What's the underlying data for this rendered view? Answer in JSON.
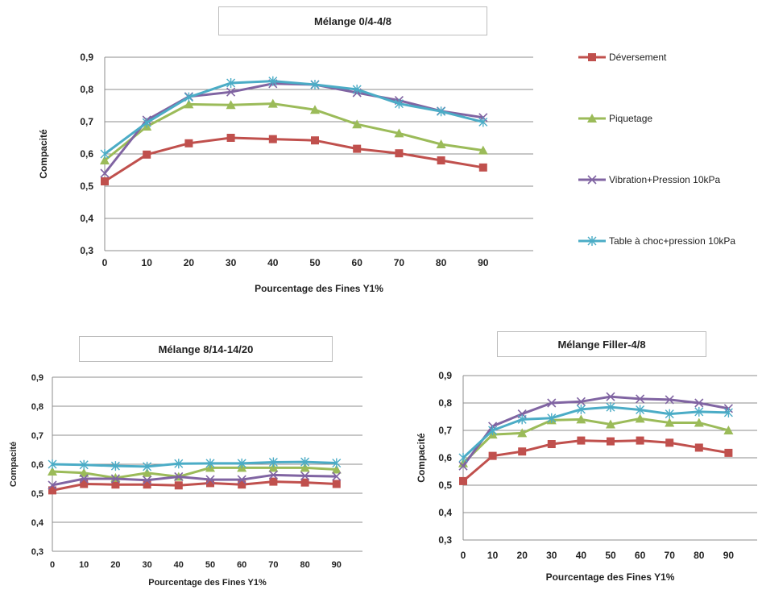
{
  "legend": [
    {
      "name": "Déversement",
      "color": "#c0504d",
      "marker": "square"
    },
    {
      "name": "Piquetage",
      "color": "#9bbb59",
      "marker": "triangle"
    },
    {
      "name": "Vibration+Pression 10kPa",
      "color": "#8064a2",
      "marker": "x"
    },
    {
      "name": "Table à choc+pression 10kPa",
      "color": "#4bacc6",
      "marker": "star"
    }
  ],
  "chart_data": [
    {
      "type": "line",
      "title": "Mélange 0/4-4/8",
      "xlabel": "Pourcentage des Fines Y1%",
      "ylabel": "Compacité",
      "x": [
        0,
        10,
        20,
        30,
        40,
        50,
        60,
        70,
        80,
        90
      ],
      "ylim": [
        0.3,
        0.9
      ],
      "yticks": [
        "0,3",
        "0,4",
        "0,5",
        "0,6",
        "0,7",
        "0,8",
        "0,9"
      ],
      "grid": true,
      "legend_position": "right",
      "series": [
        {
          "name": "Déversement",
          "values": [
            0.515,
            0.598,
            0.633,
            0.65,
            0.646,
            0.642,
            0.616,
            0.602,
            0.58,
            0.558
          ]
        },
        {
          "name": "Piquetage",
          "values": [
            0.58,
            0.685,
            0.754,
            0.752,
            0.756,
            0.737,
            0.692,
            0.664,
            0.63,
            0.611
          ]
        },
        {
          "name": "Vibration+Pression 10kPa",
          "values": [
            0.54,
            0.705,
            0.778,
            0.792,
            0.818,
            0.815,
            0.79,
            0.766,
            0.733,
            0.713
          ]
        },
        {
          "name": "Table à choc+pression 10kPa",
          "values": [
            0.6,
            0.697,
            0.776,
            0.82,
            0.826,
            0.815,
            0.8,
            0.756,
            0.732,
            0.699
          ]
        }
      ]
    },
    {
      "type": "line",
      "title": "Mélange 8/14-14/20",
      "xlabel": "Pourcentage des Fines Y1%",
      "ylabel": "Compacité",
      "x": [
        0,
        10,
        20,
        30,
        40,
        50,
        60,
        70,
        80,
        90
      ],
      "ylim": [
        0.3,
        0.9
      ],
      "yticks": [
        "0,3",
        "0,4",
        "0,5",
        "0,6",
        "0,7",
        "0,8",
        "0,9"
      ],
      "grid": true,
      "legend_position": "none",
      "series": [
        {
          "name": "Déversement",
          "values": [
            0.51,
            0.532,
            0.53,
            0.53,
            0.527,
            0.535,
            0.53,
            0.54,
            0.537,
            0.532
          ]
        },
        {
          "name": "Piquetage",
          "values": [
            0.575,
            0.57,
            0.553,
            0.57,
            0.557,
            0.588,
            0.588,
            0.588,
            0.588,
            0.582
          ]
        },
        {
          "name": "Vibration+Pression 10kPa",
          "values": [
            0.528,
            0.55,
            0.55,
            0.545,
            0.557,
            0.547,
            0.547,
            0.563,
            0.56,
            0.558
          ]
        },
        {
          "name": "Table à choc+pression 10kPa",
          "values": [
            0.6,
            0.598,
            0.594,
            0.592,
            0.602,
            0.603,
            0.603,
            0.607,
            0.608,
            0.604
          ]
        }
      ]
    },
    {
      "type": "line",
      "title": "Mélange Filler-4/8",
      "xlabel": "Pourcentage des Fines Y1%",
      "ylabel": "Compacité",
      "x": [
        0,
        10,
        20,
        30,
        40,
        50,
        60,
        70,
        80,
        90
      ],
      "ylim": [
        0.3,
        0.9
      ],
      "yticks": [
        "0,3",
        "0,4",
        "0,5",
        "0,6",
        "0,7",
        "0,8",
        "0,9"
      ],
      "grid": true,
      "legend_position": "none",
      "series": [
        {
          "name": "Déversement",
          "values": [
            0.515,
            0.607,
            0.623,
            0.65,
            0.663,
            0.66,
            0.663,
            0.655,
            0.637,
            0.618
          ]
        },
        {
          "name": "Piquetage",
          "values": [
            0.58,
            0.685,
            0.69,
            0.737,
            0.74,
            0.722,
            0.743,
            0.728,
            0.728,
            0.7
          ]
        },
        {
          "name": "Vibration+Pression 10kPa",
          "values": [
            0.57,
            0.715,
            0.76,
            0.8,
            0.805,
            0.823,
            0.815,
            0.812,
            0.8,
            0.78
          ]
        },
        {
          "name": "Table à choc+pression 10kPa",
          "values": [
            0.6,
            0.7,
            0.74,
            0.745,
            0.777,
            0.785,
            0.775,
            0.76,
            0.768,
            0.765
          ]
        }
      ]
    }
  ]
}
